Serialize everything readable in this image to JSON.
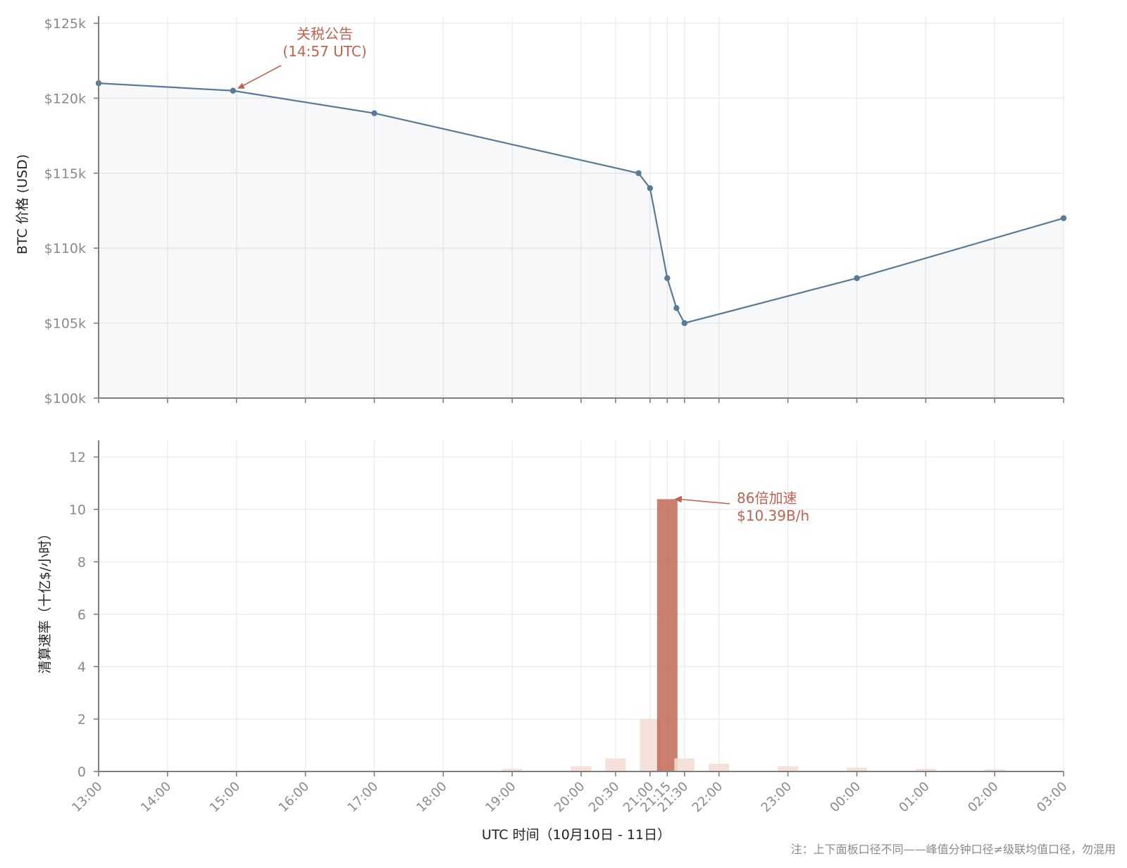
{
  "chart_data": [
    {
      "type": "line",
      "panel": "top",
      "title": "",
      "xlabel": "",
      "ylabel": "BTC 价格 (USD)",
      "ylim": [
        100000,
        125000
      ],
      "yticks": [
        100000,
        105000,
        110000,
        115000,
        120000,
        125000
      ],
      "ytick_labels": [
        "$100k",
        "$105k",
        "$110k",
        "$115k",
        "$120k",
        "$125k"
      ],
      "grid": true,
      "area_fill": true,
      "line_color": "#5a7a9a",
      "series": [
        {
          "x": [
            "13:00",
            "14:57",
            "17:00",
            "20:50",
            "21:00",
            "21:15",
            "21:23",
            "21:30",
            "00:00",
            "03:00"
          ],
          "values": [
            121000,
            120500,
            119000,
            115000,
            114000,
            108000,
            106000,
            105000,
            108000,
            112000
          ]
        }
      ],
      "annotation": {
        "text_line1": "关税公告",
        "text_line2": "(14:57 UTC)",
        "target_x": "14:57",
        "target_y": 120500
      }
    },
    {
      "type": "bar",
      "panel": "bottom",
      "title": "",
      "xlabel": "UTC 时间（10月10日 - 11日）",
      "ylabel": "清算速率（十亿$/小时）",
      "ylim": [
        0,
        12.5
      ],
      "yticks": [
        0,
        2,
        4,
        6,
        8,
        10,
        12
      ],
      "ytick_labels": [
        "0",
        "2",
        "4",
        "6",
        "8",
        "10",
        "12"
      ],
      "grid": true,
      "bar_color": "#f2dcd3",
      "highlight_color": "#c0634f",
      "bars": [
        {
          "x": "19:00",
          "value": 0.1
        },
        {
          "x": "20:00",
          "value": 0.2
        },
        {
          "x": "20:30",
          "value": 0.5
        },
        {
          "x": "21:00",
          "value": 2.0
        },
        {
          "x": "21:15",
          "value": 10.39,
          "highlight": true
        },
        {
          "x": "21:30",
          "value": 0.5
        },
        {
          "x": "22:00",
          "value": 0.3
        },
        {
          "x": "23:00",
          "value": 0.2
        },
        {
          "x": "00:00",
          "value": 0.15
        },
        {
          "x": "01:00",
          "value": 0.1
        },
        {
          "x": "02:00",
          "value": 0.08
        }
      ],
      "annotation": {
        "text_line1": "86倍加速",
        "text_line2": "$10.39B/h",
        "target_x": "21:15",
        "target_y": 10.39
      }
    }
  ],
  "x_axis": {
    "ticks": [
      "13:00",
      "14:00",
      "15:00",
      "16:00",
      "17:00",
      "18:00",
      "19:00",
      "20:00",
      "20:30",
      "21:00",
      "21:15",
      "21:30",
      "22:00",
      "23:00",
      "00:00",
      "01:00",
      "02:00",
      "03:00"
    ]
  },
  "footnote": "注：上下面板口径不同——峰值分钟口径≠级联均值口径，勿混用"
}
